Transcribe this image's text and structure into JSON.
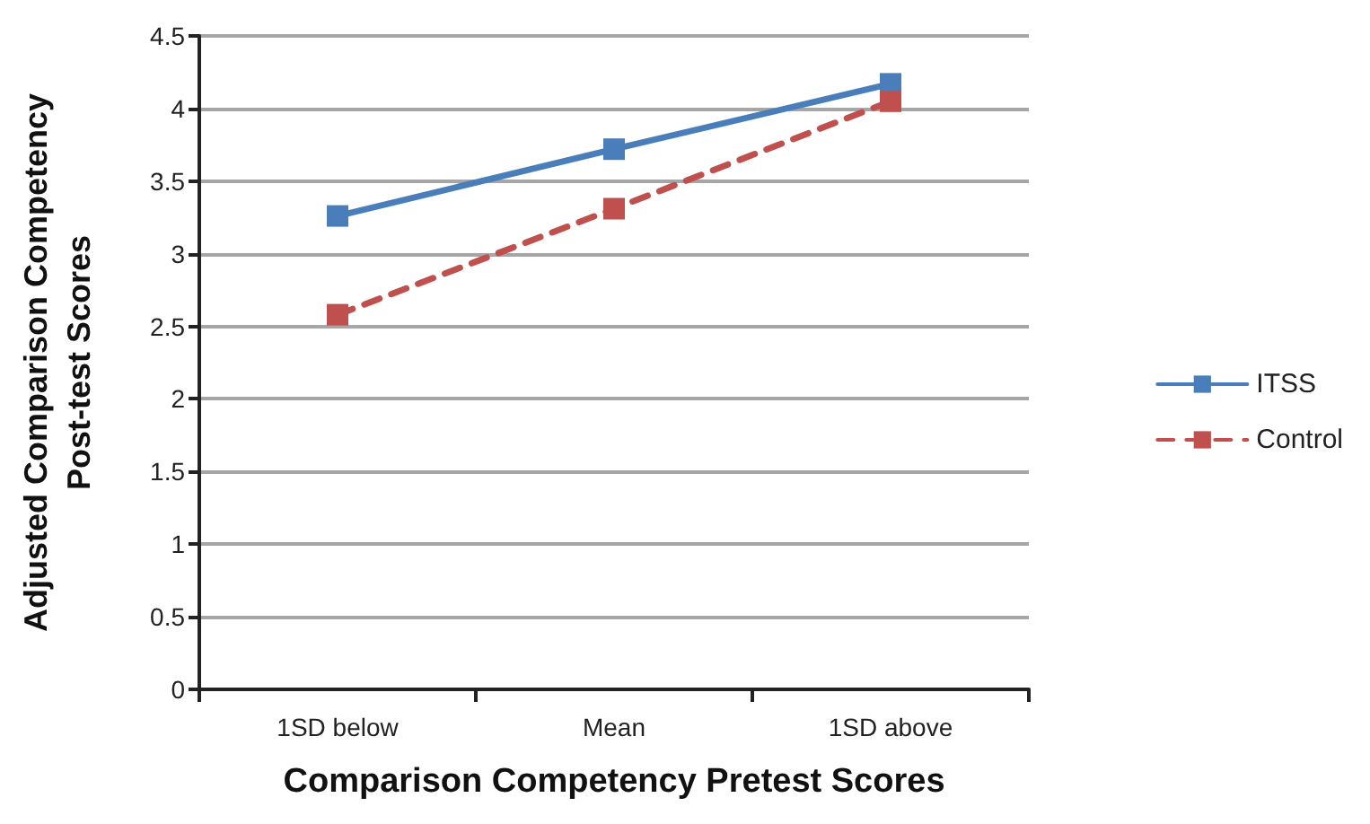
{
  "chart_data": {
    "type": "line",
    "xlabel": "Comparison Competency Pretest Scores",
    "ylabel": "Adjusted Comparison Competency\nPost-test Scores",
    "categories": [
      "1SD below",
      "Mean",
      "1SD above"
    ],
    "series": [
      {
        "name": "ITSS",
        "color": "#4a7ebb",
        "values": [
          3.26,
          3.72,
          4.17
        ],
        "line_style": "solid"
      },
      {
        "name": "Control",
        "color": "#c0504d",
        "values": [
          2.58,
          3.31,
          4.05
        ],
        "line_style": "dashed"
      }
    ],
    "ylim": [
      0,
      4.5
    ],
    "yticks": [
      0,
      0.5,
      1,
      1.5,
      2,
      2.5,
      3,
      3.5,
      4,
      4.5
    ],
    "grid": "y",
    "legend": "right",
    "marker": "square"
  }
}
